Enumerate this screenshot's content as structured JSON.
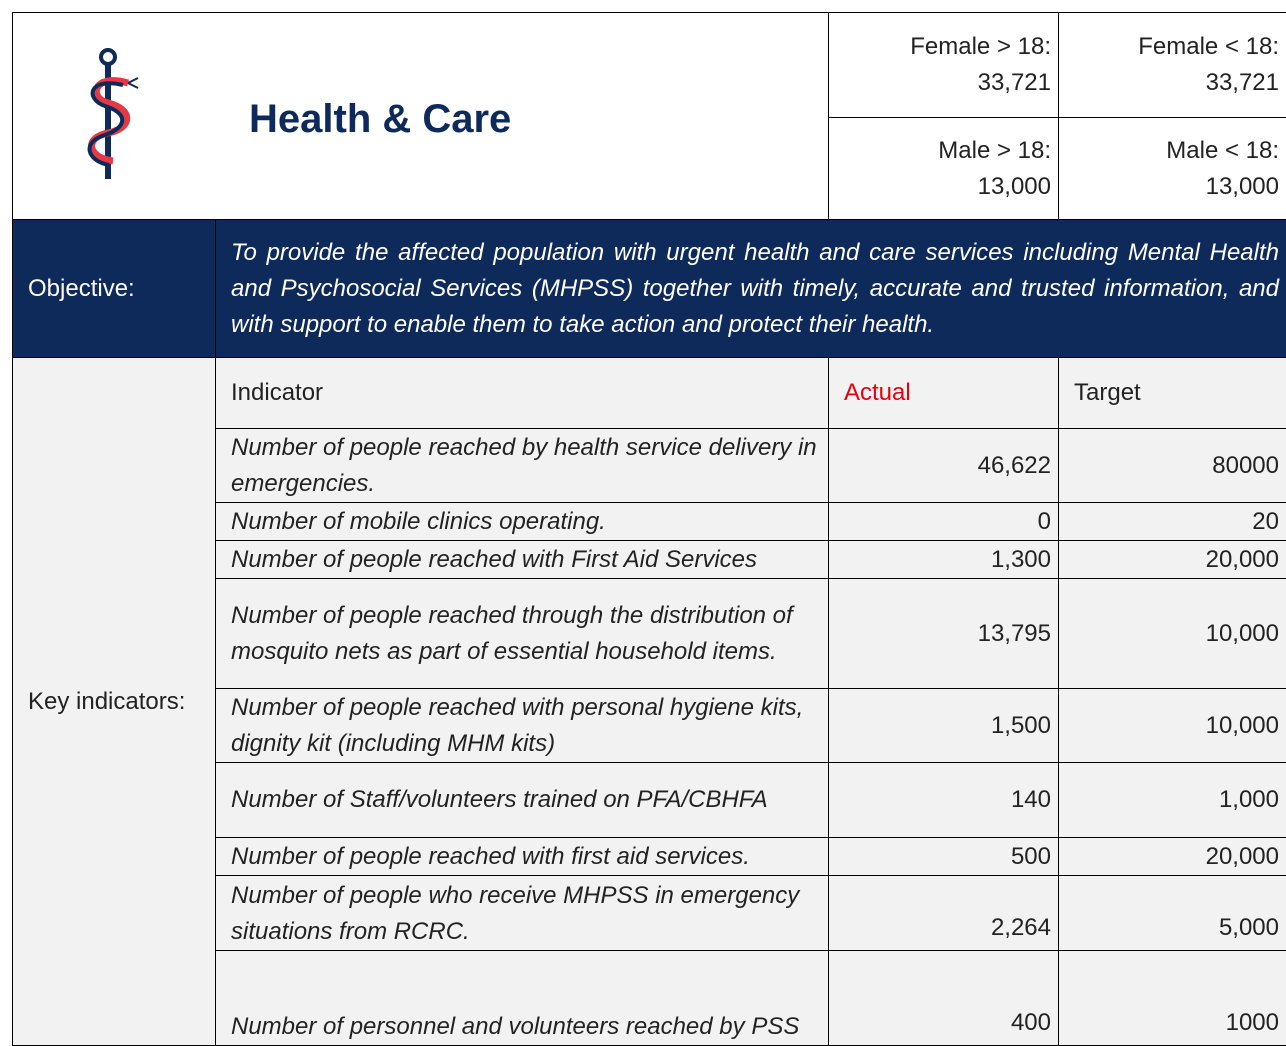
{
  "header": {
    "title": "Health & Care",
    "stats": [
      {
        "label": "Female > 18:",
        "value": "33,721"
      },
      {
        "label": "Female < 18:",
        "value": "33,721"
      },
      {
        "label": "Male > 18:",
        "value": "13,000"
      },
      {
        "label": "Male < 18:",
        "value": "13,000"
      }
    ]
  },
  "objective": {
    "label": "Objective:",
    "text": "To provide the affected population with urgent health and care services including Mental Health and Psychosocial Services (MHPSS) together with timely, accurate and trusted information, and with support to enable them to take action and protect their health."
  },
  "indicators": {
    "label": "Key indicators:",
    "columns": [
      "Indicator",
      "Actual",
      "Target"
    ],
    "rows": [
      [
        "Number of people reached by health service delivery in emergencies.",
        "46,622",
        "80000"
      ],
      [
        "Number of mobile clinics operating.",
        "0",
        "20"
      ],
      [
        "Number of people reached with First Aid Services",
        "1,300",
        "20,000"
      ],
      [
        "Number of people reached through the distribution of mosquito nets as part of essential household items.",
        "13,795",
        "10,000"
      ],
      [
        "Number of people reached with personal hygiene kits, dignity kit (including MHM kits)",
        "1,500",
        "10,000"
      ],
      [
        "Number of Staff/volunteers trained on PFA/CBHFA",
        "140",
        "1,000"
      ],
      [
        "Number of people reached with first aid services.",
        "500",
        "20,000"
      ],
      [
        "Number of people who receive MHPSS in emergency situations from RCRC.",
        "2,264",
        "5,000"
      ],
      [
        "Number of personnel and volunteers reached by PSS",
        "400",
        "1000"
      ]
    ]
  }
}
